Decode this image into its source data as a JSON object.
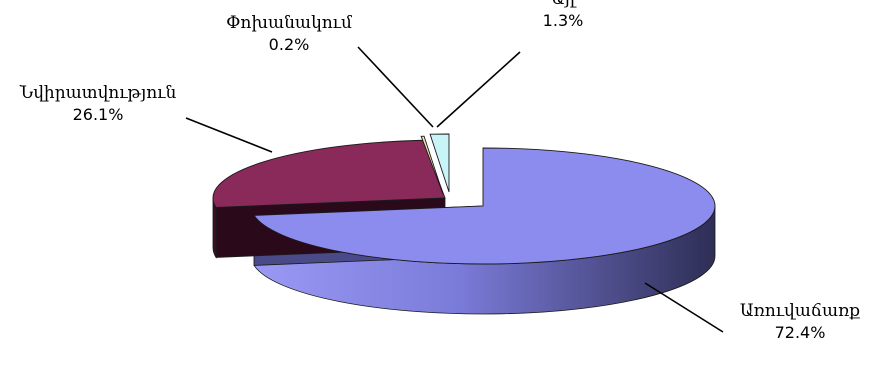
{
  "chart_data": {
    "type": "pie",
    "title": "",
    "slices": [
      {
        "label": "Առուվաճառք",
        "percent_label": "72.4%",
        "value": 72.4,
        "color": "#8c8cee",
        "side_dark": "#3a3a66",
        "side_light": "#9a9af5"
      },
      {
        "label": "Նվիրատվություն",
        "percent_label": "26.1%",
        "value": 26.1,
        "color": "#8a2a5a",
        "side_dark": "#3a0f24",
        "side_light": "#5a1a38"
      },
      {
        "label": "Փոխանակում",
        "percent_label": "0.2%",
        "value": 0.2,
        "color": "#e8e8b0",
        "side_dark": "#80805a",
        "side_light": "#b0b080"
      },
      {
        "label": "Այլ",
        "percent_label": "1.3%",
        "value": 1.3,
        "color": "#c8f4f8",
        "side_dark": "#5a8c90",
        "side_light": "#90c8cc"
      }
    ]
  }
}
